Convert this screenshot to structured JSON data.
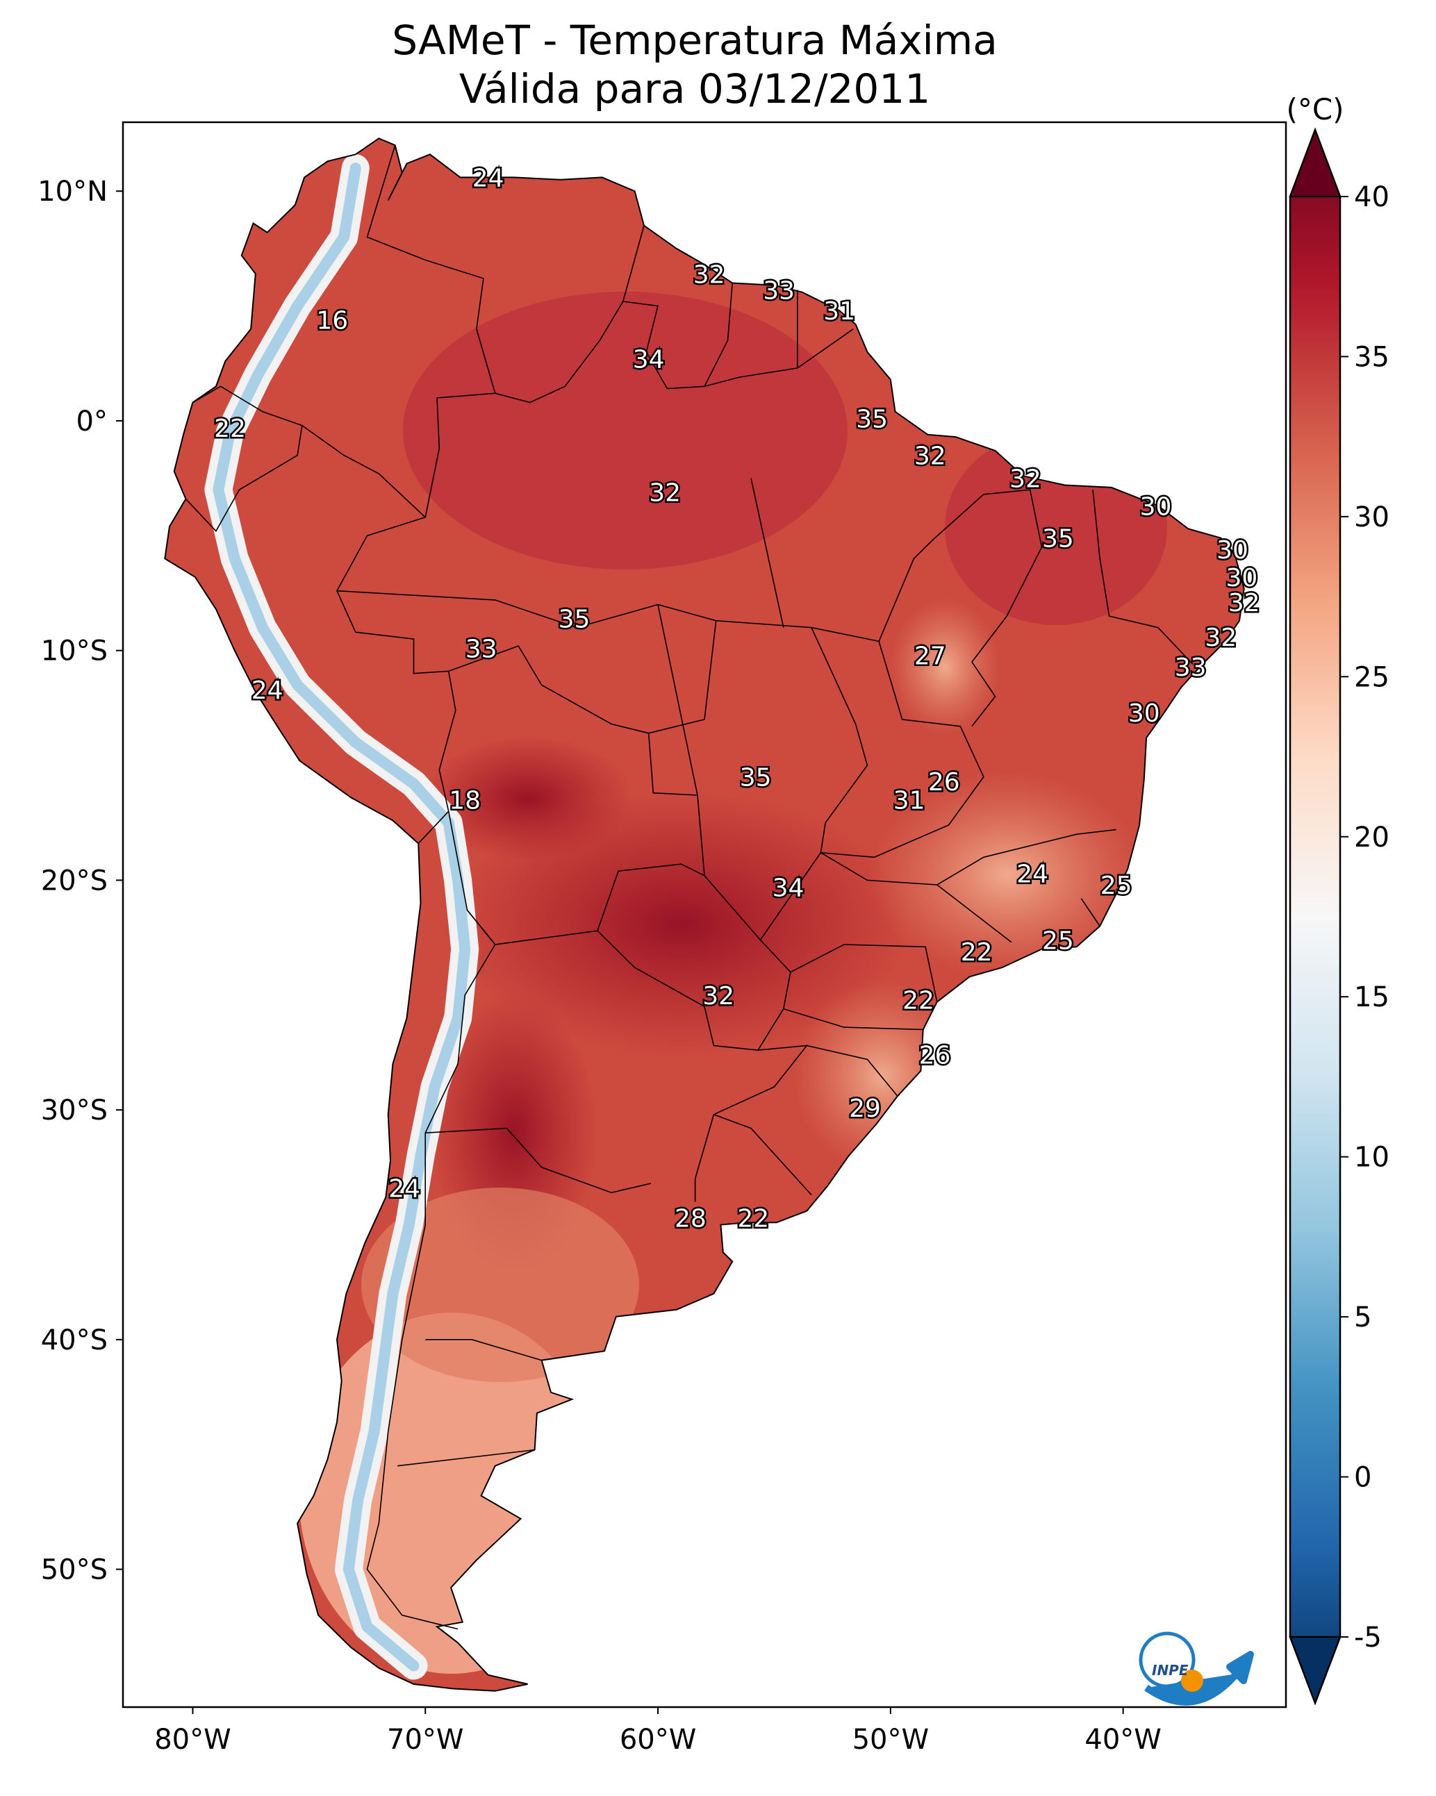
{
  "title": {
    "line1": "SAMeT - Temperatura Máxima",
    "line2": "Válida para 03/12/2011"
  },
  "map": {
    "lon_range": [
      -83,
      -33
    ],
    "lat_range": [
      -56,
      13
    ],
    "lat_ticks": [
      {
        "value": 10,
        "label": "10°N"
      },
      {
        "value": 0,
        "label": "0°"
      },
      {
        "value": -10,
        "label": "10°S"
      },
      {
        "value": -20,
        "label": "20°S"
      },
      {
        "value": -30,
        "label": "30°S"
      },
      {
        "value": -40,
        "label": "40°S"
      },
      {
        "value": -50,
        "label": "50°S"
      }
    ],
    "lon_ticks": [
      {
        "value": -80,
        "label": "80°W"
      },
      {
        "value": -70,
        "label": "70°W"
      },
      {
        "value": -60,
        "label": "60°W"
      },
      {
        "value": -50,
        "label": "50°W"
      },
      {
        "value": -40,
        "label": "40°W"
      }
    ],
    "colors": {
      "hot": "#a50f24",
      "warm": "#d6604d",
      "mild": "#f4a582",
      "neutral": "#f7f7f7",
      "cool": "#92c5de",
      "cold": "#2166ac"
    },
    "logo": {
      "text": "INPE",
      "icon": "inpe-logo-icon"
    }
  },
  "colorbar": {
    "unit": "(°C)",
    "min": -5,
    "max": 40,
    "ticks": [
      {
        "value": -5,
        "label": "-5"
      },
      {
        "value": 0,
        "label": "0"
      },
      {
        "value": 5,
        "label": "5"
      },
      {
        "value": 10,
        "label": "10"
      },
      {
        "value": 15,
        "label": "15"
      },
      {
        "value": 20,
        "label": "20"
      },
      {
        "value": 25,
        "label": "25"
      },
      {
        "value": 30,
        "label": "30"
      },
      {
        "value": 35,
        "label": "35"
      },
      {
        "value": 40,
        "label": "40"
      }
    ],
    "colormap": "RdBu_r"
  },
  "labels": [
    {
      "text": "24",
      "lon": -67.3,
      "lat": 10.6
    },
    {
      "text": "32",
      "lon": -57.8,
      "lat": 6.4
    },
    {
      "text": "33",
      "lon": -54.8,
      "lat": 5.7
    },
    {
      "text": "31",
      "lon": -52.2,
      "lat": 4.8
    },
    {
      "text": "16",
      "lon": -74.0,
      "lat": 4.4
    },
    {
      "text": "34",
      "lon": -60.4,
      "lat": 2.7
    },
    {
      "text": "35",
      "lon": -50.8,
      "lat": 0.1
    },
    {
      "text": "22",
      "lon": -78.4,
      "lat": -0.3
    },
    {
      "text": "32",
      "lon": -48.3,
      "lat": -1.5
    },
    {
      "text": "32",
      "lon": -44.2,
      "lat": -2.5
    },
    {
      "text": "32",
      "lon": -59.7,
      "lat": -3.1
    },
    {
      "text": "30",
      "lon": -38.6,
      "lat": -3.7
    },
    {
      "text": "35",
      "lon": -42.8,
      "lat": -5.1
    },
    {
      "text": "30",
      "lon": -35.3,
      "lat": -5.6
    },
    {
      "text": "30",
      "lon": -34.9,
      "lat": -6.8
    },
    {
      "text": "32",
      "lon": -34.8,
      "lat": -7.9
    },
    {
      "text": "35",
      "lon": -63.6,
      "lat": -8.6
    },
    {
      "text": "32",
      "lon": -35.8,
      "lat": -9.4
    },
    {
      "text": "33",
      "lon": -67.6,
      "lat": -9.9
    },
    {
      "text": "27",
      "lon": -48.3,
      "lat": -10.2
    },
    {
      "text": "33",
      "lon": -37.1,
      "lat": -10.7
    },
    {
      "text": "24",
      "lon": -76.8,
      "lat": -11.7
    },
    {
      "text": "30",
      "lon": -39.1,
      "lat": -12.7
    },
    {
      "text": "35",
      "lon": -55.8,
      "lat": -15.5
    },
    {
      "text": "26",
      "lon": -47.7,
      "lat": -15.7
    },
    {
      "text": "31",
      "lon": -49.2,
      "lat": -16.5
    },
    {
      "text": "18",
      "lon": -68.3,
      "lat": -16.5
    },
    {
      "text": "24",
      "lon": -43.9,
      "lat": -19.7
    },
    {
      "text": "25",
      "lon": -40.3,
      "lat": -20.2
    },
    {
      "text": "34",
      "lon": -54.4,
      "lat": -20.3
    },
    {
      "text": "25",
      "lon": -42.8,
      "lat": -22.6
    },
    {
      "text": "22",
      "lon": -46.3,
      "lat": -23.1
    },
    {
      "text": "22",
      "lon": -48.8,
      "lat": -25.2
    },
    {
      "text": "32",
      "lon": -57.4,
      "lat": -25.0
    },
    {
      "text": "26",
      "lon": -48.1,
      "lat": -27.6
    },
    {
      "text": "29",
      "lon": -51.1,
      "lat": -29.9
    },
    {
      "text": "24",
      "lon": -70.9,
      "lat": -33.4
    },
    {
      "text": "28",
      "lon": -58.6,
      "lat": -34.7
    },
    {
      "text": "22",
      "lon": -55.9,
      "lat": -34.7
    }
  ]
}
